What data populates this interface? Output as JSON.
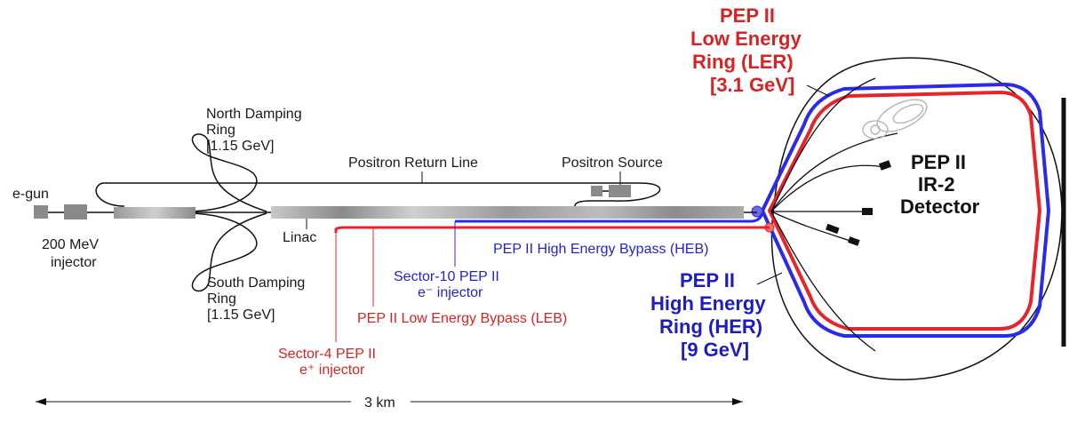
{
  "labels": {
    "egun": "e-gun",
    "injector_line1": "200 MeV",
    "injector_line2": "injector",
    "north_line1": "North Damping",
    "north_line2": "Ring",
    "north_line3": "[1.15 GeV]",
    "south_line1": "South Damping",
    "south_line2": "Ring",
    "south_line3": "[1.15 GeV]",
    "positron_return": "Positron Return Line",
    "positron_source": "Positron Source",
    "linac": "Linac",
    "heb": "PEP II High Energy Bypass (HEB)",
    "sector10_line1": "Sector-10 PEP II",
    "sector10_line2": "e⁻ injector",
    "leb": "PEP II Low Energy Bypass (LEB)",
    "sector4_line1": "Sector-4 PEP II",
    "sector4_line2": "e⁺ injector",
    "ler_line1": "PEP II",
    "ler_line2": "Low Energy",
    "ler_line3": "Ring (LER)",
    "ler_line4": "[3.1 GeV]",
    "her_line1": "PEP II",
    "her_line2": "High Energy",
    "her_line3": "Ring (HER)",
    "her_line4": "[9 GeV]",
    "detector_line1": "PEP II",
    "detector_line2": "IR-2",
    "detector_line3": "Detector",
    "scale": "3 km"
  },
  "colors": {
    "low_energy": "#e8242a",
    "high_energy": "#2a2ae8",
    "beamline": "#111111"
  }
}
